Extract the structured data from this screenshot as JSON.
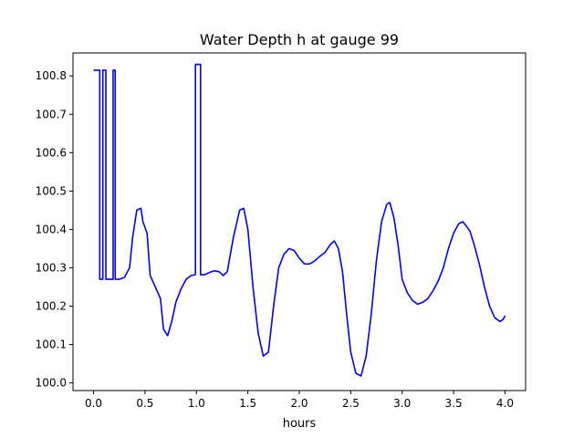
{
  "chart_data": {
    "type": "line",
    "title": "Water Depth h at gauge 99",
    "xlabel": "hours",
    "ylabel": "",
    "xlim": [
      -0.2,
      4.2
    ],
    "ylim": [
      99.98,
      100.86
    ],
    "xticks": [
      0.0,
      0.5,
      1.0,
      1.5,
      2.0,
      2.5,
      3.0,
      3.5,
      4.0
    ],
    "xtick_labels": [
      "0.0",
      "0.5",
      "1.0",
      "1.5",
      "2.0",
      "2.5",
      "3.0",
      "3.5",
      "4.0"
    ],
    "yticks": [
      100.0,
      100.1,
      100.2,
      100.3,
      100.4,
      100.5,
      100.6,
      100.7,
      100.8
    ],
    "ytick_labels": [
      "100.0",
      "100.1",
      "100.2",
      "100.3",
      "100.4",
      "100.5",
      "100.6",
      "100.7",
      "100.8"
    ],
    "grid": false,
    "series": [
      {
        "color": "#0000ff",
        "x": [
          0.0,
          0.06,
          0.06,
          0.09,
          0.09,
          0.12,
          0.12,
          0.19,
          0.19,
          0.21,
          0.21,
          0.25,
          0.3,
          0.35,
          0.38,
          0.42,
          0.46,
          0.48,
          0.52,
          0.55,
          0.6,
          0.65,
          0.68,
          0.72,
          0.76,
          0.8,
          0.85,
          0.9,
          0.95,
          0.99,
          0.99,
          1.04,
          1.04,
          1.08,
          1.12,
          1.17,
          1.22,
          1.26,
          1.3,
          1.36,
          1.42,
          1.46,
          1.5,
          1.55,
          1.6,
          1.65,
          1.7,
          1.75,
          1.8,
          1.85,
          1.9,
          1.95,
          2.0,
          2.05,
          2.1,
          2.15,
          2.2,
          2.25,
          2.3,
          2.34,
          2.38,
          2.42,
          2.46,
          2.5,
          2.55,
          2.6,
          2.65,
          2.7,
          2.75,
          2.8,
          2.85,
          2.88,
          2.92,
          2.96,
          3.0,
          3.05,
          3.1,
          3.15,
          3.2,
          3.25,
          3.3,
          3.35,
          3.4,
          3.45,
          3.5,
          3.55,
          3.59,
          3.62,
          3.66,
          3.7,
          3.75,
          3.8,
          3.85,
          3.9,
          3.95,
          3.98,
          4.0
        ],
        "y": [
          100.815,
          100.815,
          100.27,
          100.27,
          100.815,
          100.815,
          100.27,
          100.27,
          100.815,
          100.815,
          100.27,
          100.27,
          100.275,
          100.3,
          100.38,
          100.45,
          100.455,
          100.42,
          100.39,
          100.28,
          100.25,
          100.22,
          100.14,
          100.123,
          100.16,
          100.21,
          100.245,
          100.27,
          100.28,
          100.282,
          100.83,
          100.83,
          100.282,
          100.282,
          100.287,
          100.292,
          100.29,
          100.28,
          100.29,
          100.38,
          100.45,
          100.455,
          100.4,
          100.25,
          100.13,
          100.07,
          100.08,
          100.2,
          100.3,
          100.335,
          100.35,
          100.345,
          100.325,
          100.31,
          100.31,
          100.318,
          100.33,
          100.34,
          100.36,
          100.37,
          100.35,
          100.29,
          100.18,
          100.08,
          100.025,
          100.018,
          100.07,
          100.18,
          100.32,
          100.42,
          100.465,
          100.47,
          100.43,
          100.36,
          100.27,
          100.235,
          100.215,
          100.205,
          100.21,
          100.22,
          100.24,
          100.265,
          100.3,
          100.35,
          100.39,
          100.415,
          100.42,
          100.41,
          100.395,
          100.36,
          100.31,
          100.25,
          100.2,
          100.17,
          100.16,
          100.165,
          100.175
        ]
      }
    ]
  }
}
